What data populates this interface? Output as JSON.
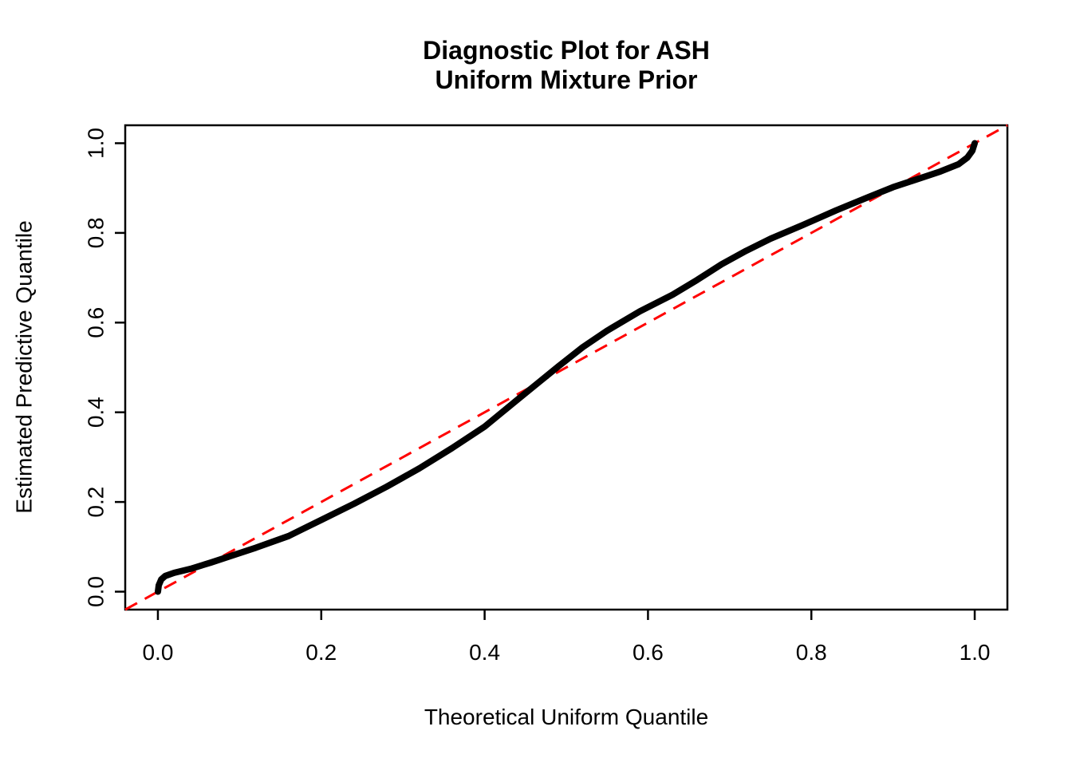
{
  "figure": {
    "background": "#FFFFFF",
    "text_color": "#000000"
  },
  "chart_data": {
    "type": "line",
    "title": "Diagnostic Plot for ASH",
    "subtitle": "Uniform Mixture Prior",
    "xlabel": "Theoretical Uniform Quantile",
    "ylabel": "Estimated Predictive Quantile",
    "xlim": [
      -0.04,
      1.04
    ],
    "ylim": [
      -0.04,
      1.04
    ],
    "x_ticks": [
      0.0,
      0.2,
      0.4,
      0.6,
      0.8,
      1.0
    ],
    "y_ticks": [
      0.0,
      0.2,
      0.4,
      0.6,
      0.8,
      1.0
    ],
    "tick_label_format": "one-decimal",
    "grid": false,
    "legend": "none",
    "series": [
      {
        "name": "estimated-predictive-quantiles",
        "label": "Estimated predictive quantile curve",
        "color": "#000000",
        "line_style": "solid",
        "line_width": 8,
        "points": [
          [
            0.0,
            0.0
          ],
          [
            0.001,
            0.014
          ],
          [
            0.004,
            0.027
          ],
          [
            0.009,
            0.035
          ],
          [
            0.02,
            0.042
          ],
          [
            0.04,
            0.051
          ],
          [
            0.065,
            0.065
          ],
          [
            0.09,
            0.08
          ],
          [
            0.12,
            0.098
          ],
          [
            0.16,
            0.124
          ],
          [
            0.2,
            0.16
          ],
          [
            0.24,
            0.196
          ],
          [
            0.28,
            0.234
          ],
          [
            0.32,
            0.275
          ],
          [
            0.36,
            0.32
          ],
          [
            0.4,
            0.368
          ],
          [
            0.44,
            0.428
          ],
          [
            0.465,
            0.465
          ],
          [
            0.49,
            0.502
          ],
          [
            0.52,
            0.545
          ],
          [
            0.55,
            0.582
          ],
          [
            0.59,
            0.625
          ],
          [
            0.63,
            0.662
          ],
          [
            0.66,
            0.695
          ],
          [
            0.69,
            0.73
          ],
          [
            0.72,
            0.76
          ],
          [
            0.75,
            0.787
          ],
          [
            0.79,
            0.818
          ],
          [
            0.83,
            0.85
          ],
          [
            0.87,
            0.88
          ],
          [
            0.9,
            0.902
          ],
          [
            0.93,
            0.92
          ],
          [
            0.958,
            0.937
          ],
          [
            0.98,
            0.953
          ],
          [
            0.991,
            0.968
          ],
          [
            0.997,
            0.983
          ],
          [
            1.0,
            1.0
          ]
        ]
      },
      {
        "name": "reference-line-y-equals-x",
        "label": "y = x reference line",
        "color": "#FF0000",
        "line_style": "dashed",
        "line_width": 3,
        "points": [
          [
            -0.04,
            -0.04
          ],
          [
            1.04,
            1.04
          ]
        ]
      }
    ]
  }
}
